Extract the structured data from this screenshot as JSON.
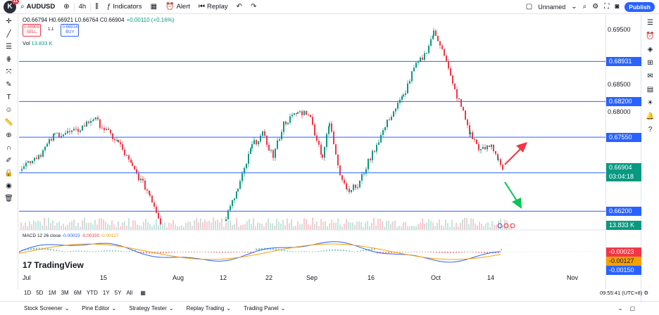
{
  "topbar": {
    "logo_letter": "K",
    "logo_badge": "11",
    "symbol": "AUDUSD",
    "timeframe": "4h",
    "indicators": "Indicators",
    "alert": "Alert",
    "replay": "Replay",
    "layout_name": "Unnamed",
    "publish": "Publish"
  },
  "legend": {
    "ohlc": "O0.66794 H0.66921 L0.66764 C0.66904",
    "change": "+0.00110 (+0.16%)",
    "sell_price": "0.66909",
    "sell_label": "SELL",
    "spread": "1.1",
    "buy_price": "0.66914",
    "buy_label": "BUY",
    "vol_label": "Vol",
    "vol_value": "13.833 K",
    "macd_label": "MACD 12 26 close",
    "macd_v1": "-0.00023",
    "macd_v2": "-0.00150",
    "macd_v3": "-0.00127"
  },
  "price_axis": {
    "ticks": [
      "0.69500",
      "0.68500",
      "0.68000",
      "0.67000"
    ],
    "levels": [
      {
        "label": "0.68931",
        "price": 0.68931,
        "color": "#2962ff"
      },
      {
        "label": "0.68200",
        "price": 0.682,
        "color": "#2962ff"
      },
      {
        "label": "0.67550",
        "price": 0.6755,
        "color": "#2962ff"
      },
      {
        "label": "0.66900",
        "price": 0.669,
        "color": "#2962ff"
      },
      {
        "label": "0.66200",
        "price": 0.662,
        "color": "#2962ff"
      }
    ],
    "current_price": "0.66904",
    "countdown": "03:04:18",
    "volume": "13.833 K",
    "macd_values": [
      {
        "label": "-0.00023",
        "color": "#f23645"
      },
      {
        "label": "-0.00127",
        "color": "#f7a000"
      },
      {
        "label": "-0.00150",
        "color": "#2962ff"
      }
    ]
  },
  "time_axis": [
    "Jul",
    "15",
    "Aug",
    "12",
    "22",
    "Sep",
    "16",
    "Oct",
    "14",
    "Nov"
  ],
  "ranges": [
    "1D",
    "5D",
    "1M",
    "3M",
    "6M",
    "YTD",
    "1Y",
    "5Y",
    "All"
  ],
  "status_time": "09:55:41 (UTC+8)",
  "bottom_tabs": [
    "Stock Screener",
    "Pine Editor",
    "Strategy Tester",
    "Replay Trading",
    "Trading Panel"
  ],
  "tv_logo": "TradingView",
  "colors": {
    "up": "#089981",
    "down": "#f23645",
    "level": "#2962ff",
    "accent": "#2962ff"
  }
}
